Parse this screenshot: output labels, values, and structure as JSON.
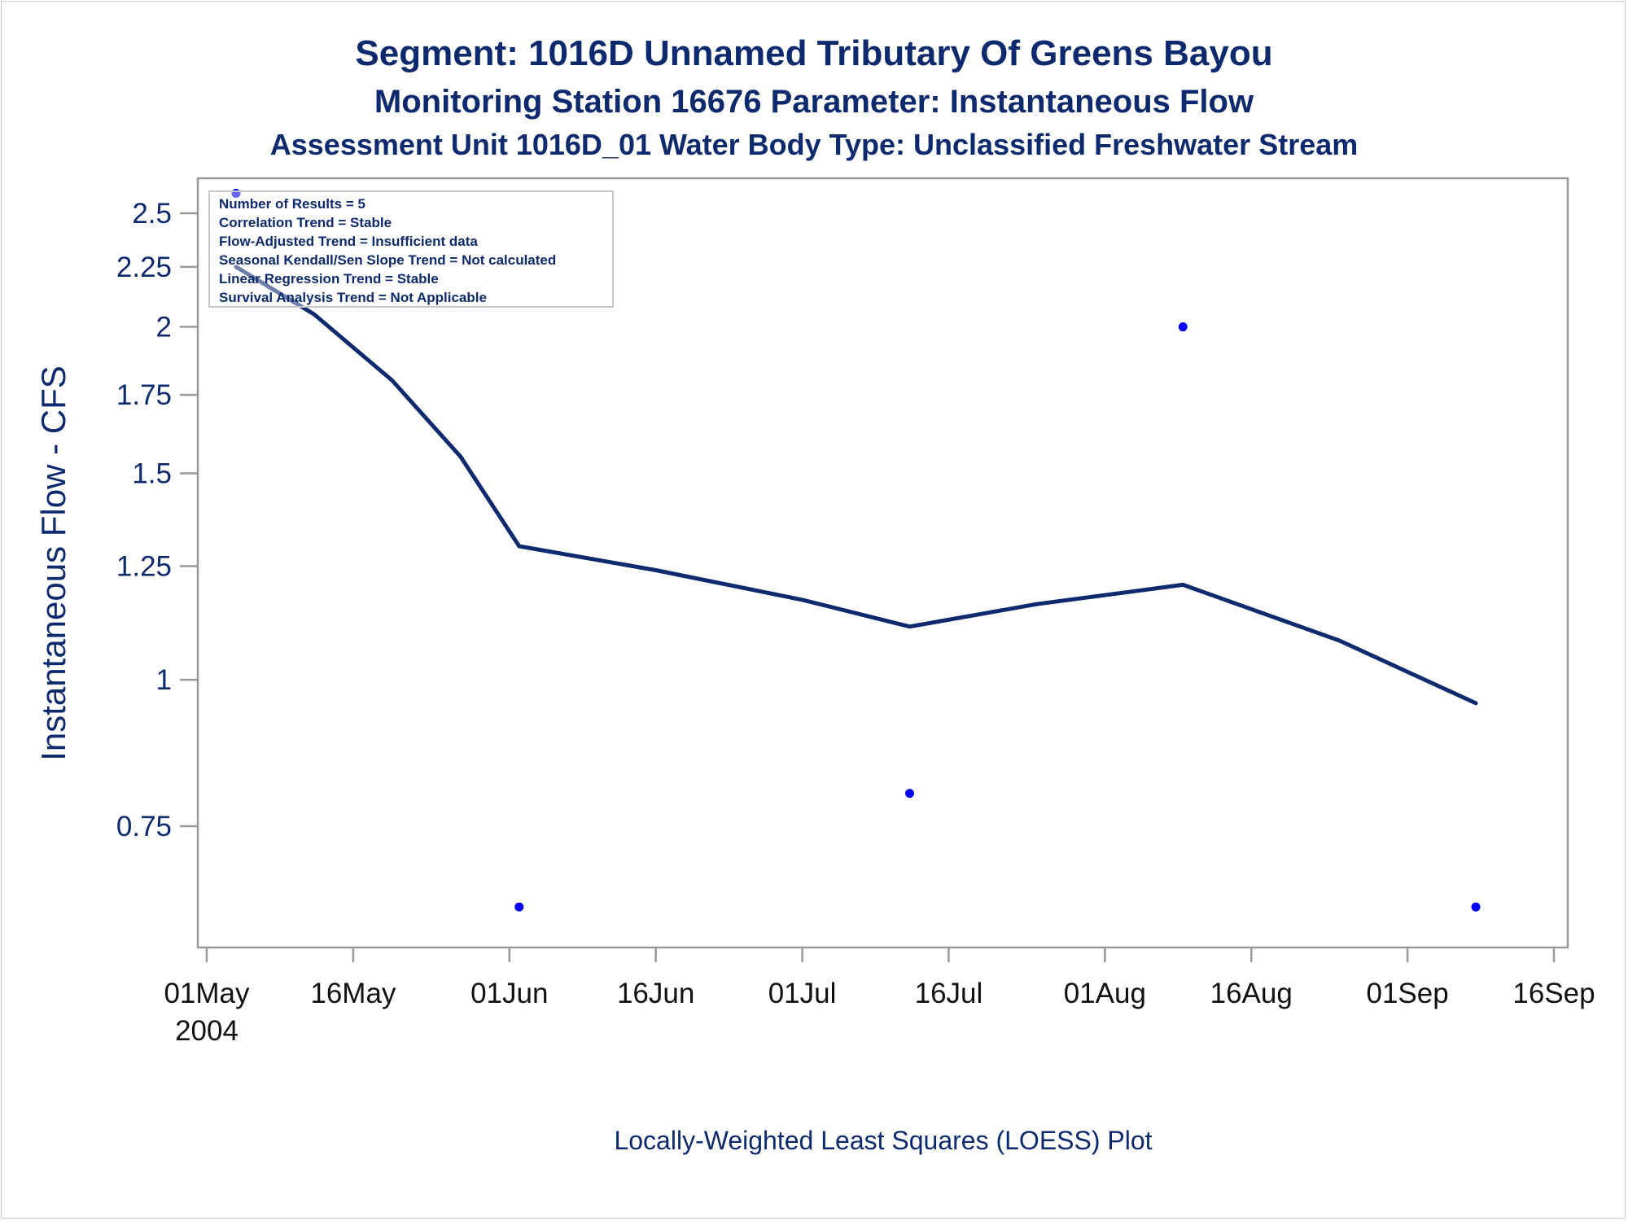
{
  "titles": {
    "line1": "Segment: 1016D  Unnamed Tributary Of Greens Bayou",
    "line2": "Monitoring Station 16676 Parameter: Instantaneous Flow",
    "line3": "Assessment Unit 1016D_01   Water Body Type: Unclassified Freshwater Stream"
  },
  "stats_box": [
    "Number of Results = 5",
    "Correlation Trend = Stable",
    "Flow-Adjusted Trend = Insufficient data",
    "Seasonal Kendall/Sen Slope Trend = Not calculated",
    "Linear Regression Trend = Stable",
    "Survival Analysis Trend = Not Applicable"
  ],
  "footnote": "Locally-Weighted Least Squares (LOESS) Plot",
  "colors": {
    "line": "#0d2a6e",
    "points": "#0000ff",
    "axis": "#999999"
  },
  "chart_data": {
    "type": "line",
    "title": "Segment: 1016D  Unnamed Tributary Of Greens Bayou",
    "xlabel": "",
    "ylabel": "Instantaneous Flow - CFS",
    "y_scale": "log",
    "ylim": [
      0.62,
      2.65
    ],
    "xlim": [
      "2004-04-28",
      "2004-09-17"
    ],
    "x_ticks": [
      {
        "date": "2004-05-01",
        "label": "01May",
        "sublabel": "2004"
      },
      {
        "date": "2004-05-16",
        "label": "16May"
      },
      {
        "date": "2004-06-01",
        "label": "01Jun"
      },
      {
        "date": "2004-06-16",
        "label": "16Jun"
      },
      {
        "date": "2004-07-01",
        "label": "01Jul"
      },
      {
        "date": "2004-07-16",
        "label": "16Jul"
      },
      {
        "date": "2004-08-01",
        "label": "01Aug"
      },
      {
        "date": "2004-08-16",
        "label": "16Aug"
      },
      {
        "date": "2004-09-01",
        "label": "01Sep"
      },
      {
        "date": "2004-09-16",
        "label": "16Sep"
      }
    ],
    "y_ticks": [
      0.75,
      1,
      1.25,
      1.5,
      1.75,
      2,
      2.25,
      2.5
    ],
    "y_tick_labels": [
      "0.75",
      "1",
      "1.25",
      "1.5",
      "1.75",
      "2",
      "2.25",
      "2.5"
    ],
    "series": [
      {
        "kind": "scatter",
        "points": [
          {
            "x": "2004-05-04",
            "y": 2.6
          },
          {
            "x": "2004-06-02",
            "y": 0.64
          },
          {
            "x": "2004-07-12",
            "y": 0.8
          },
          {
            "x": "2004-08-09",
            "y": 2.0
          },
          {
            "x": "2004-09-08",
            "y": 0.64
          }
        ]
      },
      {
        "kind": "line",
        "points": [
          {
            "x": "2004-05-04",
            "y": 2.25
          },
          {
            "x": "2004-05-12",
            "y": 2.05
          },
          {
            "x": "2004-05-20",
            "y": 1.8
          },
          {
            "x": "2004-05-27",
            "y": 1.55
          },
          {
            "x": "2004-06-02",
            "y": 1.3
          },
          {
            "x": "2004-06-16",
            "y": 1.24
          },
          {
            "x": "2004-07-01",
            "y": 1.17
          },
          {
            "x": "2004-07-12",
            "y": 1.11
          },
          {
            "x": "2004-07-25",
            "y": 1.16
          },
          {
            "x": "2004-08-09",
            "y": 1.205
          },
          {
            "x": "2004-08-25",
            "y": 1.08
          },
          {
            "x": "2004-09-08",
            "y": 0.955
          }
        ]
      }
    ]
  }
}
